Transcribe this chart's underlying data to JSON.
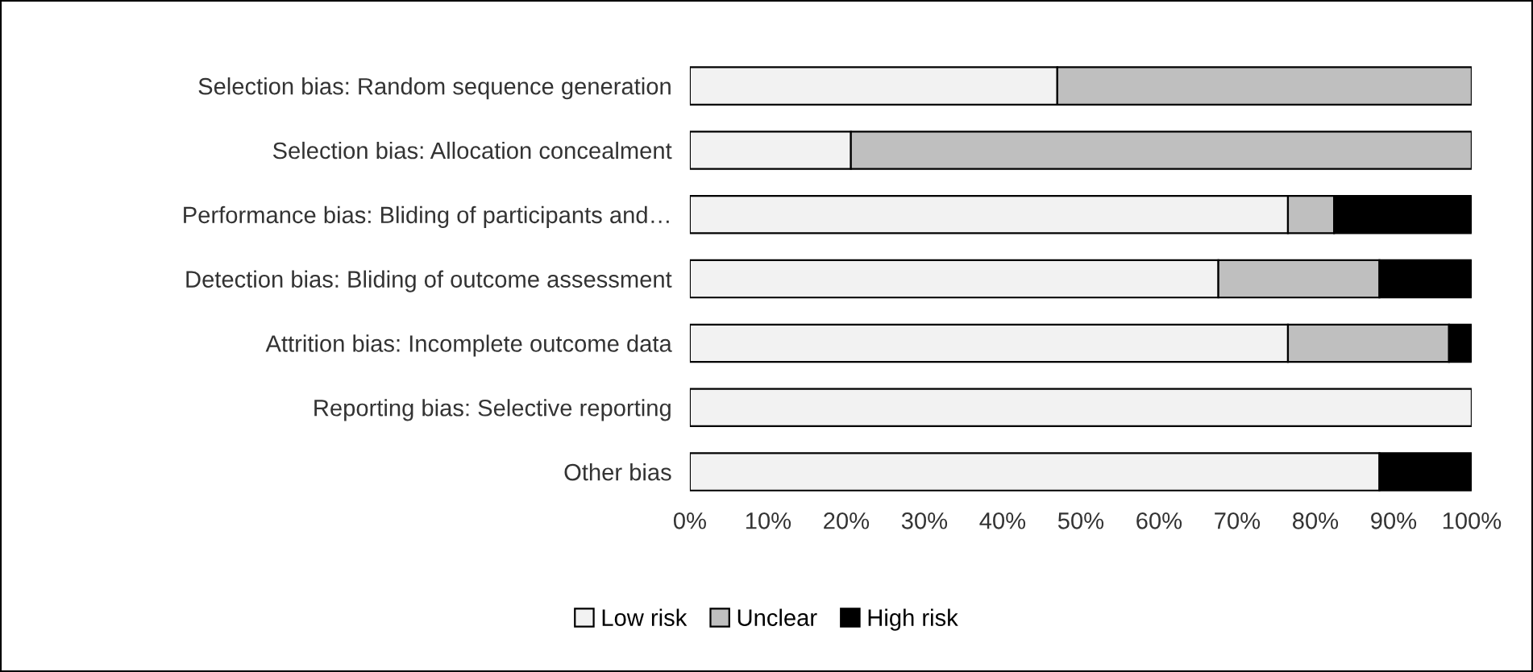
{
  "chart_data": {
    "type": "bar",
    "orientation": "horizontal",
    "stacked": true,
    "categories": [
      "Selection bias: Random sequence generation",
      "Selection bias: Allocation concealment",
      "Performance bias: Bliding of participants and…",
      "Detection bias: Bliding of outcome assessment",
      "Attrition bias: Incomplete outcome data",
      "Reporting bias: Selective reporting",
      "Other bias"
    ],
    "series": [
      {
        "name": "Low risk",
        "color": "#f2f2f2",
        "values": [
          47,
          20.6,
          76.5,
          67.6,
          76.5,
          100,
          88.2
        ]
      },
      {
        "name": "Unclear",
        "color": "#bfbfbf",
        "values": [
          53,
          79.4,
          5.9,
          20.6,
          20.6,
          0,
          0
        ]
      },
      {
        "name": "High risk",
        "color": "#000000",
        "values": [
          0,
          0,
          17.6,
          11.8,
          2.9,
          0,
          11.8
        ]
      }
    ],
    "xlim": [
      0,
      100
    ],
    "xticks": [
      {
        "value": 0,
        "label": "0%"
      },
      {
        "value": 10,
        "label": "10%"
      },
      {
        "value": 20,
        "label": "20%"
      },
      {
        "value": 30,
        "label": "30%"
      },
      {
        "value": 40,
        "label": "40%"
      },
      {
        "value": 50,
        "label": "50%"
      },
      {
        "value": 60,
        "label": "60%"
      },
      {
        "value": 70,
        "label": "70%"
      },
      {
        "value": 80,
        "label": "80%"
      },
      {
        "value": 90,
        "label": "90%"
      },
      {
        "value": 100,
        "label": "100%"
      }
    ],
    "grid": false,
    "legend": "bottom"
  }
}
